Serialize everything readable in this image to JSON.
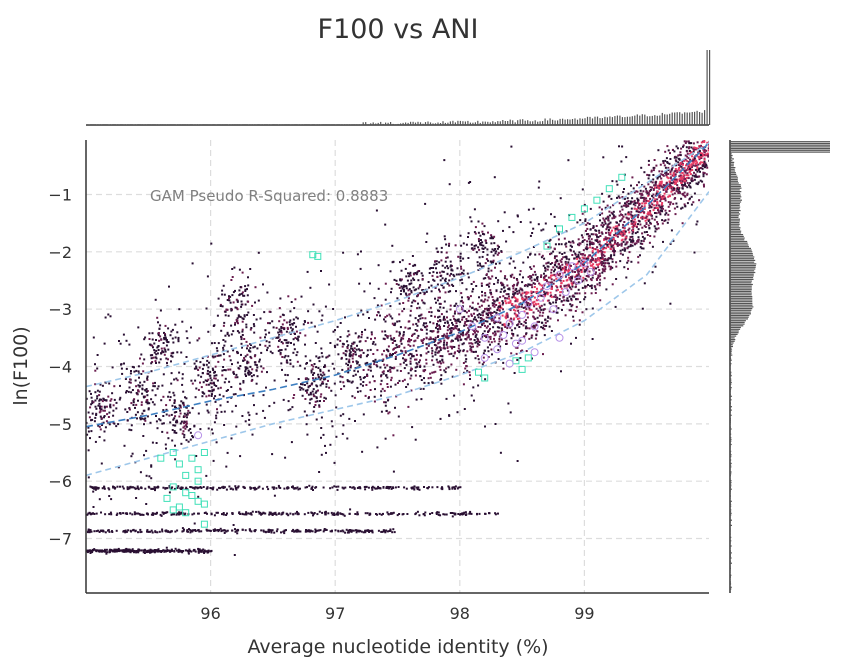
{
  "chart_data": {
    "type": "scatter",
    "title": "F100 vs ANI",
    "xlabel": "Average nucleotide identity (%)",
    "ylabel": "ln(F100)",
    "xlim": [
      95.0,
      100.0
    ],
    "ylim": [
      -7.95,
      -0.05
    ],
    "xticks": [
      96,
      97,
      98,
      99
    ],
    "xtick_labels": [
      "96",
      "97",
      "98",
      "99"
    ],
    "yticks": [
      -1,
      -2,
      -3,
      -4,
      -5,
      -6,
      -7
    ],
    "ytick_labels": [
      "−1",
      "−2",
      "−3",
      "−4",
      "−5",
      "−6",
      "−7"
    ],
    "grid": true,
    "annotation": "GAM Pseudo R-Squared: 0.8883",
    "colors": {
      "density_low": "#2a1033",
      "density_mid": "#6a1c4e",
      "density_high": "#e83a63",
      "square_markers": "#40e0b8",
      "circle_markers": "#b792e8",
      "gam_fit": "#3d7fc1",
      "gam_band": "#9ec7ea",
      "marginal_hist": "#555555"
    },
    "gam_fit": {
      "x": [
        95.0,
        95.5,
        96.0,
        96.5,
        97.0,
        97.5,
        98.0,
        98.5,
        99.0,
        99.5,
        100.0
      ],
      "y": [
        -5.05,
        -4.85,
        -4.6,
        -4.4,
        -4.15,
        -3.8,
        -3.4,
        -2.9,
        -2.2,
        -1.2,
        -0.1
      ]
    },
    "gam_band_upper": {
      "x": [
        95.0,
        95.5,
        96.0,
        96.5,
        97.0,
        97.5,
        98.0,
        98.5,
        99.0,
        99.5,
        100.0
      ],
      "y": [
        -4.35,
        -4.1,
        -3.8,
        -3.5,
        -3.2,
        -2.85,
        -2.45,
        -2.0,
        -1.5,
        -0.8,
        -0.1
      ]
    },
    "gam_band_lower": {
      "x": [
        95.0,
        95.5,
        96.0,
        96.5,
        97.0,
        97.5,
        98.0,
        98.5,
        99.0,
        99.5,
        100.0
      ],
      "y": [
        -5.9,
        -5.6,
        -5.3,
        -5.0,
        -4.75,
        -4.5,
        -4.15,
        -3.75,
        -3.2,
        -2.4,
        -0.95
      ]
    },
    "square_points": {
      "x": [
        95.6,
        95.7,
        95.75,
        95.8,
        95.85,
        95.9,
        95.95,
        95.7,
        95.8,
        95.9,
        95.65,
        95.75,
        95.85,
        95.95,
        95.7,
        95.8,
        95.9,
        95.95,
        96.82,
        96.86,
        98.15,
        98.2,
        98.45,
        98.5,
        98.55,
        98.7,
        98.8,
        98.9,
        99.0,
        99.1,
        99.2,
        99.3
      ],
      "y": [
        -5.6,
        -5.5,
        -5.7,
        -5.9,
        -5.6,
        -5.8,
        -5.5,
        -6.1,
        -6.2,
        -6.0,
        -6.3,
        -6.45,
        -6.25,
        -6.4,
        -6.5,
        -6.55,
        -6.35,
        -6.75,
        -2.05,
        -2.08,
        -4.1,
        -4.2,
        -3.9,
        -4.05,
        -3.85,
        -1.9,
        -1.6,
        -1.4,
        -1.25,
        -1.1,
        -0.9,
        -0.7
      ]
    },
    "circle_points": {
      "x": [
        95.9,
        98.0,
        98.1,
        98.2,
        98.3,
        98.35,
        98.4,
        98.45,
        98.5,
        98.55,
        98.6,
        98.65,
        98.7,
        98.75,
        98.8,
        98.85,
        98.9,
        98.95,
        99.0,
        99.05,
        98.2,
        98.4,
        98.6,
        98.8,
        98.5,
        98.3
      ],
      "y": [
        -5.2,
        -3.0,
        -3.3,
        -3.5,
        -3.7,
        -3.45,
        -3.25,
        -3.6,
        -3.1,
        -2.9,
        -3.3,
        -2.8,
        -2.6,
        -3.0,
        -2.4,
        -2.7,
        -2.25,
        -2.5,
        -2.2,
        -2.35,
        -3.85,
        -3.95,
        -3.75,
        -3.5,
        -3.55,
        -3.15
      ]
    }
  }
}
